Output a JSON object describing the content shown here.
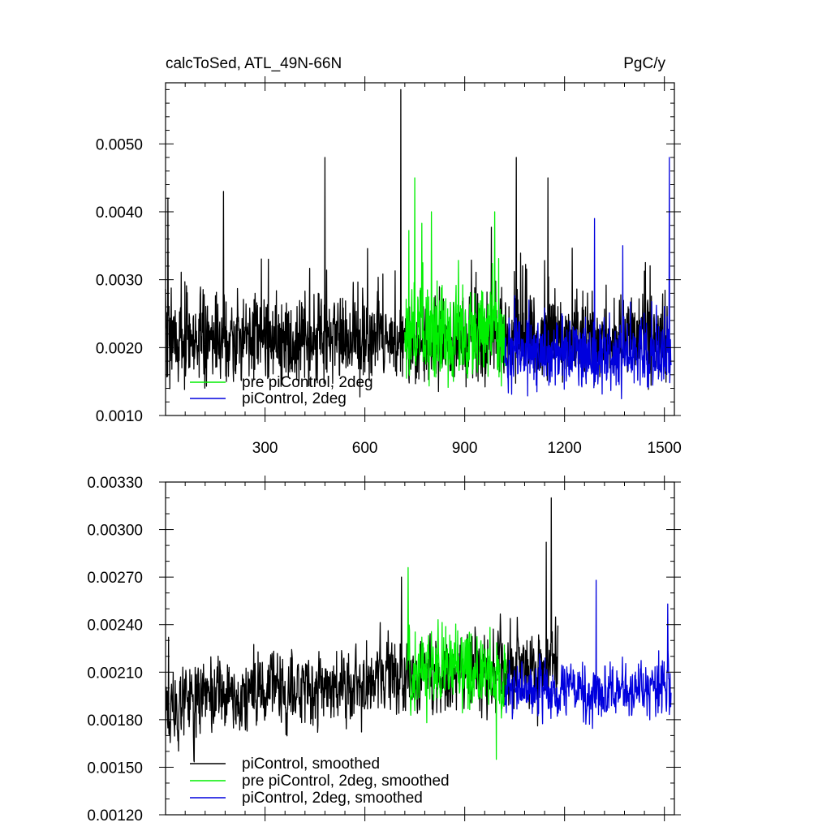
{
  "chart_data": [
    {
      "type": "line",
      "title_left": "calcToSed, ATL_49N-66N",
      "title_right": "PgC/y",
      "xlim": [
        1,
        1530
      ],
      "ylim": [
        0.001,
        0.0059
      ],
      "xticks": [
        300,
        600,
        900,
        1200,
        1500
      ],
      "xtick_labels": [
        "300",
        "600",
        "900",
        "1200",
        "1500"
      ],
      "yticks": [
        0.001,
        0.002,
        0.003,
        0.004,
        0.005
      ],
      "ytick_labels": [
        "0.0010",
        "0.0020",
        "0.0030",
        "0.0040",
        "0.0050"
      ],
      "grid": false,
      "legend_position": "bottom-left",
      "legend": [
        "pre piControl, 2deg",
        "piControl, 2deg"
      ],
      "series": [
        {
          "color": "#000000",
          "x_start": 1,
          "x_end": 1510,
          "mean": 0.0021,
          "sd": 0.0005,
          "spikes": [
            [
              8,
              0.0042
            ],
            [
              175,
              0.0043
            ],
            [
              480,
              0.0048
            ],
            [
              708,
              0.0058
            ],
            [
              1055,
              0.0048
            ],
            [
              1150,
              0.0045
            ]
          ]
        },
        {
          "name": "pre piControl, 2deg",
          "color": "#00ee00",
          "x_start": 720,
          "x_end": 1020,
          "mean": 0.0022,
          "sd": 0.00055,
          "spikes": [
            [
              750,
              0.0045
            ],
            [
              800,
              0.004
            ],
            [
              990,
              0.004
            ]
          ]
        },
        {
          "name": "piControl, 2deg",
          "color": "#0000dd",
          "x_start": 1020,
          "x_end": 1520,
          "mean": 0.0019,
          "sd": 0.00042,
          "spikes": [
            [
              1290,
              0.0039
            ],
            [
              1375,
              0.0035
            ],
            [
              1515,
              0.0048
            ]
          ]
        }
      ]
    },
    {
      "type": "line",
      "xlim": [
        1,
        1530
      ],
      "ylim": [
        0.0012,
        0.0033
      ],
      "xticks": [
        300,
        600,
        900,
        1200,
        1500
      ],
      "yticks": [
        0.0012,
        0.0015,
        0.0018,
        0.0021,
        0.0024,
        0.0027,
        0.003,
        0.0033
      ],
      "ytick_labels": [
        "0.00120",
        "0.00150",
        "0.00180",
        "0.00210",
        "0.00240",
        "0.00270",
        "0.00300",
        "0.00330"
      ],
      "grid": false,
      "legend_position": "bottom-left",
      "legend": [
        "piControl, smoothed",
        "pre piControl, 2deg, smoothed",
        "piControl, 2deg, smoothed"
      ],
      "series": [
        {
          "name": "piControl, smoothed",
          "color": "#000000",
          "x_start": 1,
          "x_end": 1180,
          "mean_start": 0.0019,
          "mean_end": 0.00215,
          "sd": 0.00022,
          "spikes": [
            [
              10,
              0.00232
            ],
            [
              710,
              0.0027
            ],
            [
              1145,
              0.00292
            ],
            [
              1160,
              0.0032
            ]
          ]
        },
        {
          "name": "pre piControl, 2deg, smoothed",
          "color": "#00ee00",
          "x_start": 725,
          "x_end": 1025,
          "mean_start": 0.00215,
          "mean_end": 0.00205,
          "sd": 0.00022,
          "spikes": [
            [
              730,
              0.00276
            ],
            [
              995,
              0.00155
            ]
          ]
        },
        {
          "name": "piControl, 2deg, smoothed",
          "color": "#0000dd",
          "x_start": 1020,
          "x_end": 1520,
          "mean_start": 0.00198,
          "mean_end": 0.00198,
          "sd": 0.00016,
          "spikes": [
            [
              1295,
              0.00268
            ],
            [
              1510,
              0.00253
            ]
          ]
        }
      ]
    }
  ]
}
